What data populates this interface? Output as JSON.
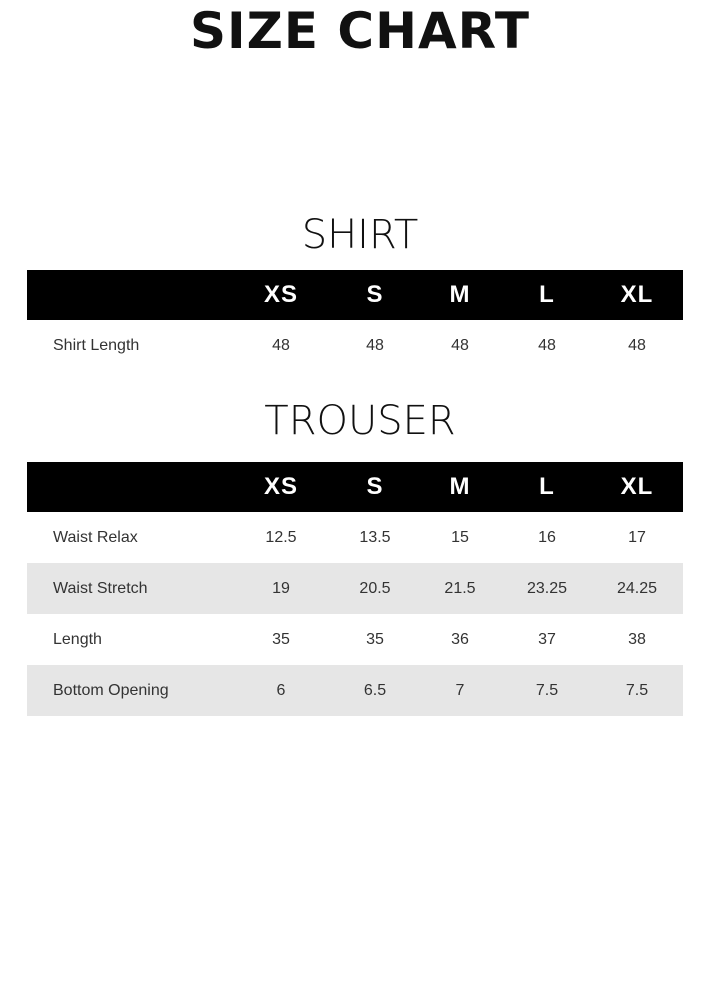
{
  "title": "SIZE CHART",
  "sizes": [
    "XS",
    "S",
    "M",
    "L",
    "XL"
  ],
  "shirt": {
    "title": "SHIRT",
    "rows": [
      {
        "label": "Shirt Length",
        "values": [
          "48",
          "48",
          "48",
          "48",
          "48"
        ]
      }
    ]
  },
  "trouser": {
    "title": "TROUSER",
    "rows": [
      {
        "label": "Waist Relax",
        "values": [
          "12.5",
          "13.5",
          "15",
          "16",
          "17"
        ]
      },
      {
        "label": "Waist Stretch",
        "values": [
          "19",
          "20.5",
          "21.5",
          "23.25",
          "24.25"
        ]
      },
      {
        "label": "Length",
        "values": [
          "35",
          "35",
          "36",
          "37",
          "38"
        ]
      },
      {
        "label": "Bottom Opening",
        "values": [
          "6",
          "6.5",
          "7",
          "7.5",
          "7.5"
        ]
      }
    ]
  },
  "colors": {
    "header_bg": "#000000",
    "alt_row_bg": "#e6e6e6"
  }
}
